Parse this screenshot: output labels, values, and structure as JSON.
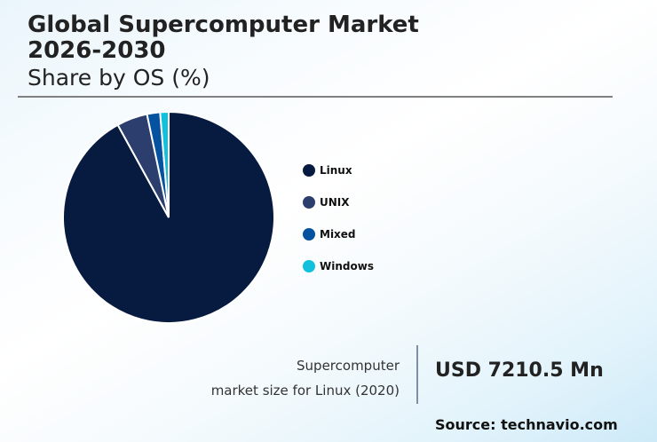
{
  "header": {
    "title_line1": "Global Supercomputer Market",
    "title_line2": "2026-2030",
    "subtitle": "Share by OS (%)"
  },
  "legend": [
    {
      "label": "Linux",
      "color": "#071b41"
    },
    {
      "label": "UNIX",
      "color": "#2c3e6d"
    },
    {
      "label": "Mixed",
      "color": "#0452a0"
    },
    {
      "label": "Windows",
      "color": "#10c0dc"
    }
  ],
  "stat": {
    "label_line1": "Supercomputer",
    "label_line2": "market size for Linux (2020)",
    "value": "USD 7210.5 Mn"
  },
  "source": "Source: technavio.com",
  "chart_data": {
    "type": "pie",
    "title": "Global Supercomputer Market 2026-2030",
    "subtitle": "Share by OS (%)",
    "categories": [
      "Linux",
      "UNIX",
      "Mixed",
      "Windows"
    ],
    "values": [
      92.0,
      4.7,
      2.0,
      1.3
    ],
    "colors": [
      "#071b41",
      "#2c3e6d",
      "#0452a0",
      "#10c0dc"
    ],
    "start_angle": "12 o'clock, clockwise",
    "legend_position": "right",
    "annotation": "Supercomputer market size for Linux (2020): USD 7210.5 Mn"
  }
}
